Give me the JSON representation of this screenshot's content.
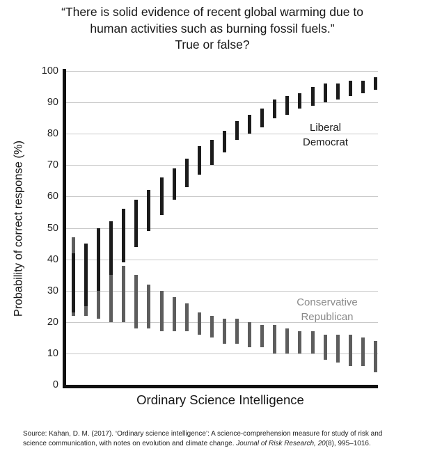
{
  "title": {
    "line1": "“There is solid evidence of recent global warming due to",
    "line2": "human activities such as burning fossil fuels.”",
    "line3": "True or false?"
  },
  "chart_data": {
    "type": "interval-bar",
    "xlabel": "Ordinary Science Intelligence",
    "ylabel": "Probability of correct response (%)",
    "ylim": [
      0,
      100
    ],
    "yticks": [
      0,
      10,
      20,
      30,
      40,
      50,
      60,
      70,
      80,
      90,
      100
    ],
    "grid": true,
    "x_tick_labels": "none",
    "axis_color": "#111111",
    "grid_color": "#c9c9c9",
    "legend_position": "inside-right",
    "series": [
      {
        "id": "liberal-democrat",
        "name": "Liberal Democrat",
        "label_lines": [
          "Liberal",
          "Democrat"
        ],
        "color": "#1b1b1b",
        "legend_text_color": "#1b1b1b",
        "intervals": [
          [
            23,
            42
          ],
          [
            25,
            45
          ],
          [
            30,
            50
          ],
          [
            35,
            52
          ],
          [
            39,
            56
          ],
          [
            44,
            59
          ],
          [
            49,
            62
          ],
          [
            54,
            66
          ],
          [
            59,
            69
          ],
          [
            63,
            72
          ],
          [
            67,
            76
          ],
          [
            70,
            78
          ],
          [
            74,
            81
          ],
          [
            78,
            84
          ],
          [
            80,
            86
          ],
          [
            82,
            88
          ],
          [
            85,
            91
          ],
          [
            86,
            92
          ],
          [
            88,
            93
          ],
          [
            89,
            95
          ],
          [
            90,
            96
          ],
          [
            91,
            96
          ],
          [
            92,
            97
          ],
          [
            93,
            97
          ],
          [
            94,
            98
          ]
        ]
      },
      {
        "id": "conservative-republican",
        "name": "Conservative Republican",
        "label_lines": [
          "Conservative",
          "Republican"
        ],
        "color": "#5d5d5d",
        "legend_text_color": "#8a8a8a",
        "intervals": [
          [
            22,
            47
          ],
          [
            22,
            44
          ],
          [
            21,
            40
          ],
          [
            20,
            38
          ],
          [
            20,
            38
          ],
          [
            18,
            35
          ],
          [
            18,
            32
          ],
          [
            17,
            30
          ],
          [
            17,
            28
          ],
          [
            17,
            26
          ],
          [
            16,
            23
          ],
          [
            15,
            22
          ],
          [
            13,
            21
          ],
          [
            13,
            21
          ],
          [
            12,
            20
          ],
          [
            12,
            19
          ],
          [
            10,
            19
          ],
          [
            10,
            18
          ],
          [
            10,
            17
          ],
          [
            10,
            17
          ],
          [
            8,
            16
          ],
          [
            7,
            16
          ],
          [
            6,
            16
          ],
          [
            6,
            15
          ],
          [
            4,
            14
          ]
        ]
      }
    ]
  },
  "source": {
    "line1": "Source: Kahan, D. M. (2017). ‘Ordinary science intelligence’: A science-comprehension measure for study of risk and",
    "line2_pre": "science communication, with notes on evolution and climate change. ",
    "line2_italic": "Journal of Risk Research, 20",
    "line2_post": "(8), 995–1016."
  }
}
